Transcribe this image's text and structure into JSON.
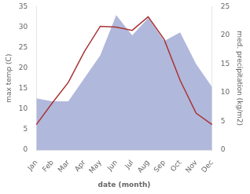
{
  "chart_data": {
    "type": "line",
    "xlabel": "date (month)",
    "ylabel": "max temp (C)",
    "y2label": "med. precipitation (kg/m2)",
    "categories": [
      "Jan",
      "Feb",
      "Mar",
      "Apr",
      "May",
      "Jun",
      "Jul",
      "Aug",
      "Sep",
      "Oct",
      "Nov",
      "Dec"
    ],
    "series": [
      {
        "type": "area",
        "axis": "y2",
        "color": "#b0b8dc",
        "values": [
          9.0,
          8.5,
          8.5,
          12.5,
          16.5,
          23.5,
          20.0,
          23.0,
          19.0,
          20.5,
          15.0,
          11.0
        ]
      },
      {
        "type": "line",
        "color": "#aa3333",
        "values": [
          6.2,
          11.5,
          16.5,
          24.0,
          30.2,
          30.0,
          29.2,
          32.5,
          27.0,
          17.0,
          9.0,
          6.2
        ]
      }
    ],
    "ylim": [
      0,
      35
    ],
    "yticks": [
      0,
      5,
      10,
      15,
      20,
      25,
      30,
      35
    ],
    "y2lim": [
      0,
      25
    ],
    "y2ticks": [
      0,
      5,
      10,
      15,
      20,
      25
    ],
    "grid": false
  }
}
